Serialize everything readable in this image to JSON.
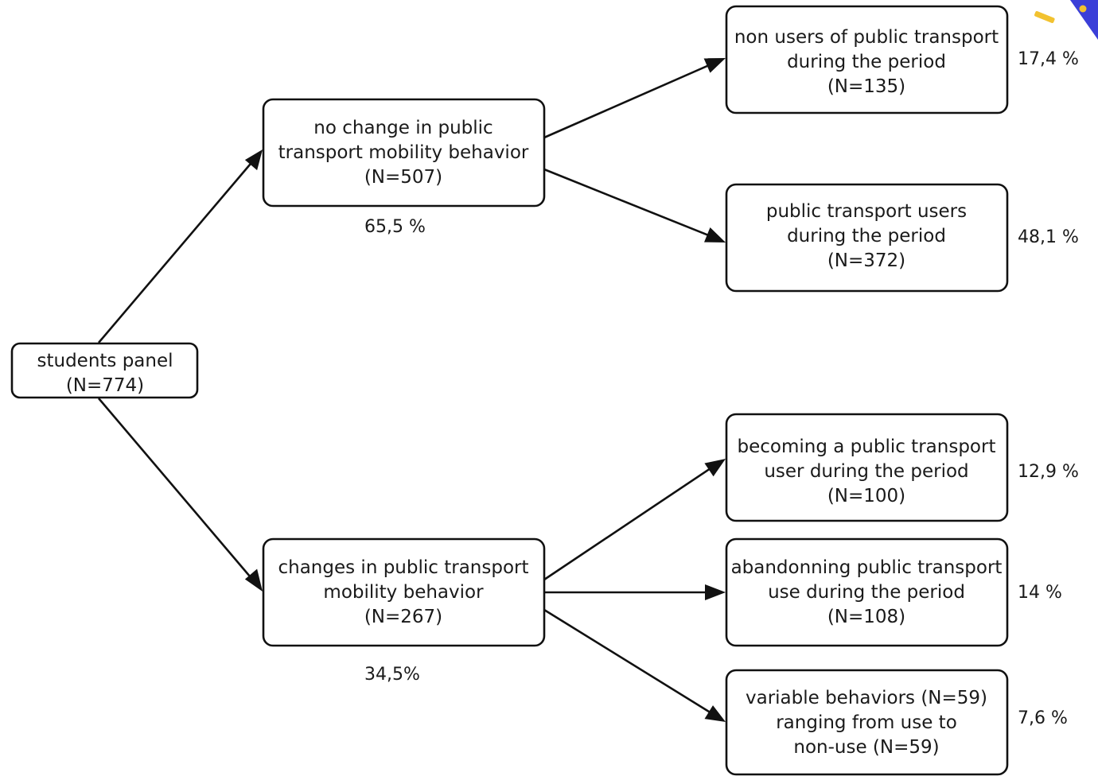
{
  "nodes": {
    "root": {
      "lines": [
        "students panel",
        "(N=774)"
      ]
    },
    "no_change": {
      "lines": [
        "no change in public",
        "transport mobility behavior",
        "(N=507)"
      ]
    },
    "changes": {
      "lines": [
        "changes in public transport",
        "mobility behavior",
        "(N=267)"
      ]
    },
    "non_users": {
      "lines": [
        "non users of public transport",
        "during the period",
        "(N=135)"
      ]
    },
    "users": {
      "lines": [
        "public transport users",
        "during the period",
        "(N=372)"
      ]
    },
    "becoming": {
      "lines": [
        "becoming a public transport",
        "user during the period",
        "(N=100)"
      ]
    },
    "abandonning": {
      "lines": [
        "abandonning public transport",
        "use during the period",
        "(N=108)"
      ]
    },
    "variable": {
      "lines": [
        "variable behaviors (N=59)",
        "ranging from use to",
        "non-use (N=59)"
      ]
    }
  },
  "percentages": {
    "no_change": "65,5 %",
    "changes": "34,5%",
    "non_users": "17,4 %",
    "users": "48,1 %",
    "becoming": "12,9 %",
    "abandonning": "14 %",
    "variable": "7,6 %"
  },
  "edges": [
    {
      "from": "root",
      "to": "no_change"
    },
    {
      "from": "root",
      "to": "changes"
    },
    {
      "from": "no_change",
      "to": "non_users"
    },
    {
      "from": "no_change",
      "to": "users"
    },
    {
      "from": "changes",
      "to": "becoming"
    },
    {
      "from": "changes",
      "to": "abandonning"
    },
    {
      "from": "changes",
      "to": "variable"
    }
  ],
  "colors": {
    "line": "#111111",
    "text": "#1a1a1a",
    "corner_accent_blue": "#3b3fd8",
    "corner_accent_yellow": "#f2c230"
  }
}
